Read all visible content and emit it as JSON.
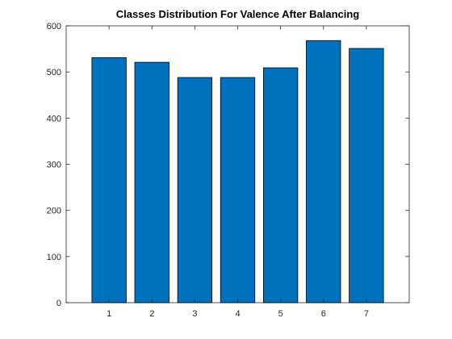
{
  "chart_data": {
    "type": "bar",
    "title": "Classes Distribution For Valence After Balancing",
    "xlabel": "",
    "ylabel": "",
    "categories": [
      "1",
      "2",
      "3",
      "4",
      "5",
      "6",
      "7"
    ],
    "values": [
      531,
      521,
      488,
      488,
      509,
      568,
      551
    ],
    "ylim": [
      0,
      600
    ],
    "yticks": [
      "0",
      "100",
      "200",
      "300",
      "400",
      "500",
      "600"
    ],
    "xlim": [
      0,
      8
    ],
    "grid": false,
    "legend": "none",
    "bar_color": "#0072BD",
    "bar_edge_color": "#000000"
  }
}
